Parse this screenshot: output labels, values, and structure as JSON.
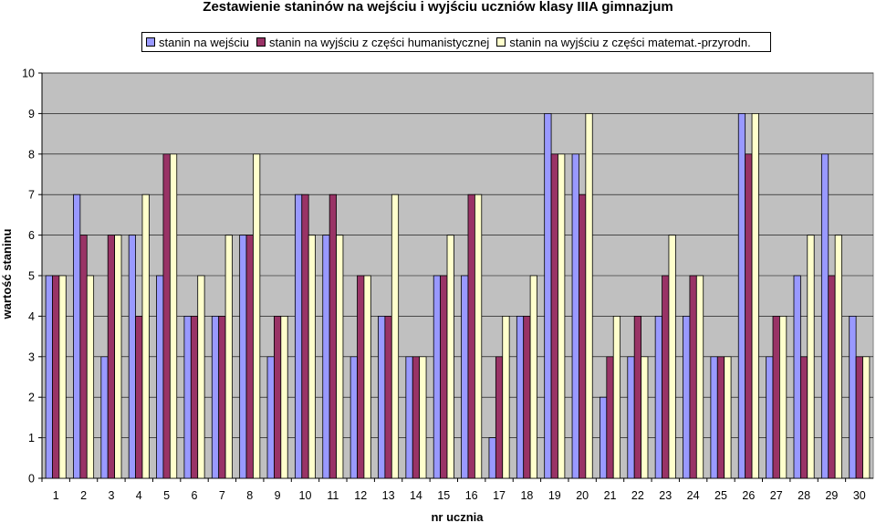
{
  "chart_data": {
    "type": "bar",
    "title": "Zestawienie staninów na wejściu i wyjściu uczniów klasy IIIA gimnazjum",
    "xlabel": "nr ucznia",
    "ylabel": "wartość staninu",
    "ylim": [
      0,
      10
    ],
    "yticks": [
      0,
      1,
      2,
      3,
      4,
      5,
      6,
      7,
      8,
      9,
      10
    ],
    "grid": true,
    "legend_position": "top",
    "plot_background": "#c0c0c0",
    "categories": [
      "1",
      "2",
      "3",
      "4",
      "5",
      "6",
      "7",
      "8",
      "9",
      "10",
      "11",
      "12",
      "13",
      "14",
      "15",
      "16",
      "17",
      "18",
      "19",
      "20",
      "21",
      "22",
      "23",
      "24",
      "25",
      "26",
      "27",
      "28",
      "29",
      "30"
    ],
    "series": [
      {
        "name": "stanin na wejściu",
        "color": "#9999ff",
        "values": [
          5,
          7,
          3,
          6,
          5,
          4,
          4,
          6,
          3,
          7,
          6,
          3,
          4,
          3,
          5,
          5,
          1,
          4,
          9,
          8,
          2,
          3,
          4,
          4,
          3,
          9,
          3,
          5,
          8,
          4
        ]
      },
      {
        "name": "stanin na wyjściu z części humanistycznej",
        "color": "#993366",
        "values": [
          5,
          6,
          6,
          4,
          8,
          4,
          4,
          6,
          4,
          7,
          7,
          5,
          4,
          3,
          5,
          7,
          3,
          4,
          8,
          7,
          3,
          4,
          5,
          5,
          3,
          8,
          4,
          3,
          5,
          3
        ]
      },
      {
        "name": "stanin na wyjściu z części matemat.-przyrodn.",
        "color": "#ffffcc",
        "values": [
          5,
          5,
          6,
          7,
          8,
          5,
          6,
          8,
          4,
          6,
          6,
          5,
          7,
          3,
          6,
          7,
          4,
          5,
          8,
          9,
          4,
          3,
          6,
          5,
          3,
          9,
          4,
          6,
          6,
          3
        ]
      }
    ]
  }
}
